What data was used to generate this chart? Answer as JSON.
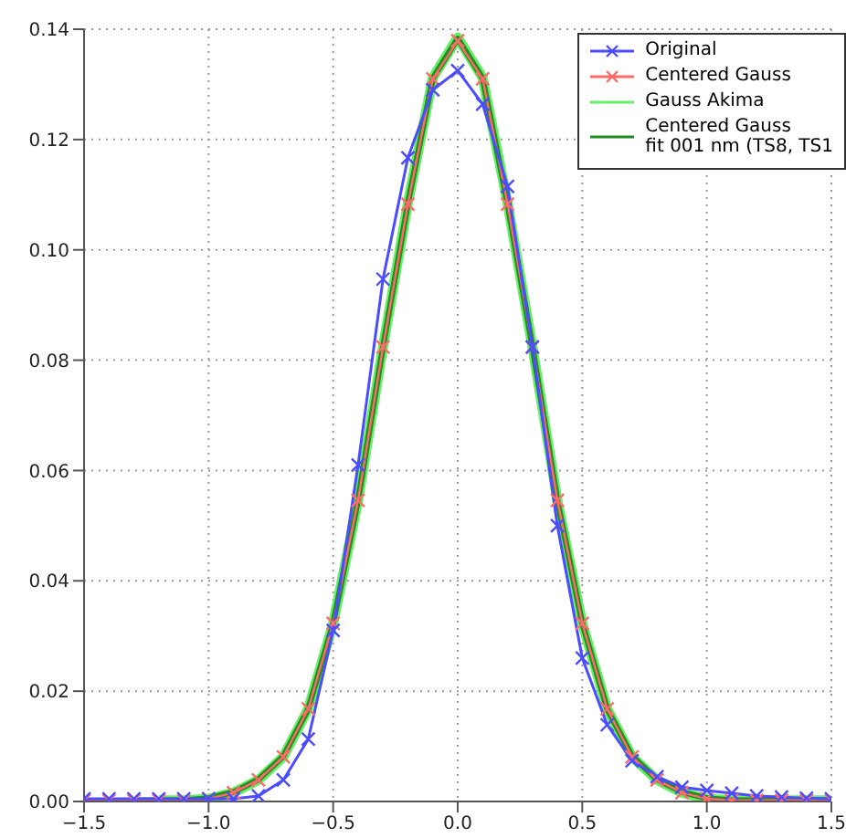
{
  "chart_data": {
    "type": "line",
    "x": [
      -1.5,
      -1.4,
      -1.3,
      -1.2,
      -1.1,
      -1.0,
      -0.9,
      -0.8,
      -0.7,
      -0.6,
      -0.5,
      -0.4,
      -0.3,
      -0.2,
      -0.1,
      0.0,
      0.1,
      0.2,
      0.3,
      0.4,
      0.5,
      0.6,
      0.7,
      0.8,
      0.9,
      1.0,
      1.1,
      1.2,
      1.3,
      1.4,
      1.5
    ],
    "series": [
      {
        "name": "Original",
        "color": "#4b4bff",
        "marker": "cross",
        "values": [
          0.0005,
          0.0005,
          0.0005,
          0.0005,
          0.0005,
          0.0005,
          0.0005,
          0.001,
          0.0039,
          0.0113,
          0.031,
          0.061,
          0.0947,
          0.1167,
          0.129,
          0.1325,
          0.1264,
          0.1115,
          0.0824,
          0.05,
          0.026,
          0.0139,
          0.0074,
          0.0045,
          0.0026,
          0.002,
          0.0015,
          0.001,
          0.0008,
          0.0006,
          0.0005
        ]
      },
      {
        "name": "Centered Gauss",
        "color": "#ff6a6a",
        "marker": "cross",
        "values": [
          0.0002,
          0.0002,
          0.0002,
          0.0002,
          0.0002,
          0.0005,
          0.0016,
          0.0039,
          0.0081,
          0.0168,
          0.0323,
          0.0546,
          0.0824,
          0.1083,
          0.131,
          0.1379,
          0.131,
          0.1083,
          0.0824,
          0.0546,
          0.0323,
          0.0168,
          0.0081,
          0.0039,
          0.0016,
          0.0005,
          0.0002,
          0.0002,
          0.0002,
          0.0002,
          0.0002
        ]
      },
      {
        "name": "Gauss Akima",
        "color": "#66ee66",
        "marker": "none",
        "values": [
          null,
          null,
          null,
          0.0002,
          0.0002,
          0.0005,
          0.0016,
          0.0039,
          0.0081,
          0.0168,
          0.0323,
          0.0546,
          0.0824,
          0.1085,
          0.1312,
          0.1385,
          0.1312,
          0.1085,
          0.0824,
          0.0546,
          0.0323,
          0.0168,
          0.0081,
          0.0039,
          0.0016,
          0.0005,
          0.0002,
          0.0002,
          0.0002,
          0.0002,
          0.0002
        ]
      },
      {
        "name": "Centered Gauss\nfit 001 nm (TS8, TS1",
        "color": "#228b22",
        "marker": "none",
        "values": [
          null,
          null,
          0.0002,
          0.0002,
          0.0002,
          0.0006,
          0.0017,
          0.004,
          0.0082,
          0.0168,
          0.0323,
          0.0546,
          0.0824,
          0.1084,
          0.1311,
          0.1383,
          0.1311,
          0.1084,
          0.0824,
          0.0546,
          0.0323,
          0.0168,
          0.0082,
          0.004,
          0.0017,
          0.0006,
          0.0002,
          0.0002,
          0.0002,
          0.0002,
          0.0002
        ]
      }
    ],
    "xlim": [
      -1.5,
      1.5
    ],
    "xticks": [
      {
        "value": -1.5,
        "label": "−1.5"
      },
      {
        "value": -1.0,
        "label": "−1.0"
      },
      {
        "value": -0.5,
        "label": "−0.5"
      },
      {
        "value": 0.0,
        "label": "0.0"
      },
      {
        "value": 0.5,
        "label": "0.5"
      },
      {
        "value": 1.0,
        "label": "1.0"
      },
      {
        "value": 1.5,
        "label": "1.5"
      }
    ],
    "ylim": [
      0,
      0.14
    ],
    "yticks": [
      {
        "value": 0,
        "label": "0.00"
      },
      {
        "value": 0.02,
        "label": "0.02"
      },
      {
        "value": 0.04,
        "label": "0.04"
      },
      {
        "value": 0.06,
        "label": "0.06"
      },
      {
        "value": 0.08,
        "label": "0.08"
      },
      {
        "value": 0.1,
        "label": "0.10"
      },
      {
        "value": 0.12,
        "label": "0.12"
      },
      {
        "value": 0.14,
        "label": "0.14"
      }
    ],
    "grid": true,
    "legend": "top right",
    "line_style": "solid"
  }
}
